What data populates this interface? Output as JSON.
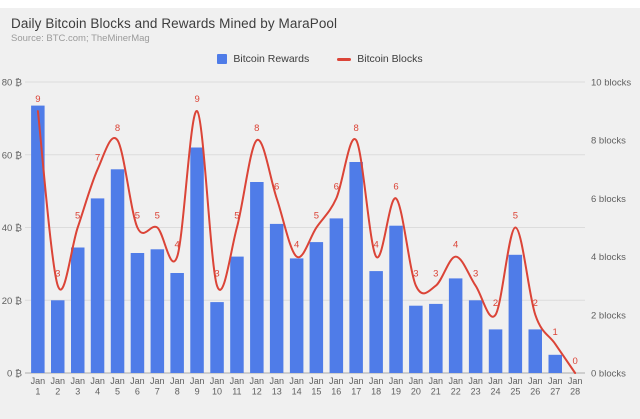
{
  "chart_data": {
    "type": "combo",
    "title": "Daily Bitcoin Blocks and Rewards Mined by MaraPool",
    "source": "Source: BTC.com; TheMinerMag",
    "legend_position": "top-center",
    "grid": "horizontal",
    "categories": [
      "Jan 1",
      "Jan 2",
      "Jan 3",
      "Jan 4",
      "Jan 5",
      "Jan 6",
      "Jan 7",
      "Jan 8",
      "Jan 9",
      "Jan 10",
      "Jan 11",
      "Jan 12",
      "Jan 13",
      "Jan 14",
      "Jan 15",
      "Jan 16",
      "Jan 17",
      "Jan 18",
      "Jan 19",
      "Jan 20",
      "Jan 21",
      "Jan 22",
      "Jan 23",
      "Jan 24",
      "Jan 25",
      "Jan 26",
      "Jan 27",
      "Jan 28"
    ],
    "series": [
      {
        "name": "Bitcoin Rewards",
        "type": "bar",
        "axis": "left",
        "color": "#4f7ce8",
        "values": [
          73.5,
          20,
          34.5,
          48,
          56,
          33,
          34,
          27.5,
          62,
          19.5,
          32,
          52.5,
          41,
          31.5,
          36,
          42.5,
          58,
          28,
          40.5,
          18.5,
          19,
          26,
          20,
          12,
          32.5,
          12,
          5,
          0
        ]
      },
      {
        "name": "Bitcoin Blocks",
        "type": "line",
        "axis": "right",
        "color": "#db4437",
        "point_labels_shown": true,
        "values": [
          9,
          3,
          5,
          7,
          8,
          5,
          5,
          4,
          9,
          3,
          5,
          8,
          6,
          4,
          5,
          6,
          8,
          4,
          6,
          3,
          3,
          4,
          3,
          2,
          5,
          2,
          1,
          0
        ]
      }
    ],
    "left_axis": {
      "unit": "₿",
      "ticks": [
        0,
        20,
        40,
        60,
        80
      ],
      "max": 80
    },
    "right_axis": {
      "unit": "blocks",
      "ticks": [
        0,
        2,
        4,
        6,
        8,
        10
      ],
      "max": 10
    },
    "colors": {
      "background": "#f0f0f0",
      "bar": "#4f7ce8",
      "line": "#db4437",
      "grid": "#dcdcdc",
      "axis_line": "#ababab",
      "axis_text": "#5f5f5f",
      "title_text": "#3d3d3d",
      "source_text": "#9b9b9b"
    }
  }
}
